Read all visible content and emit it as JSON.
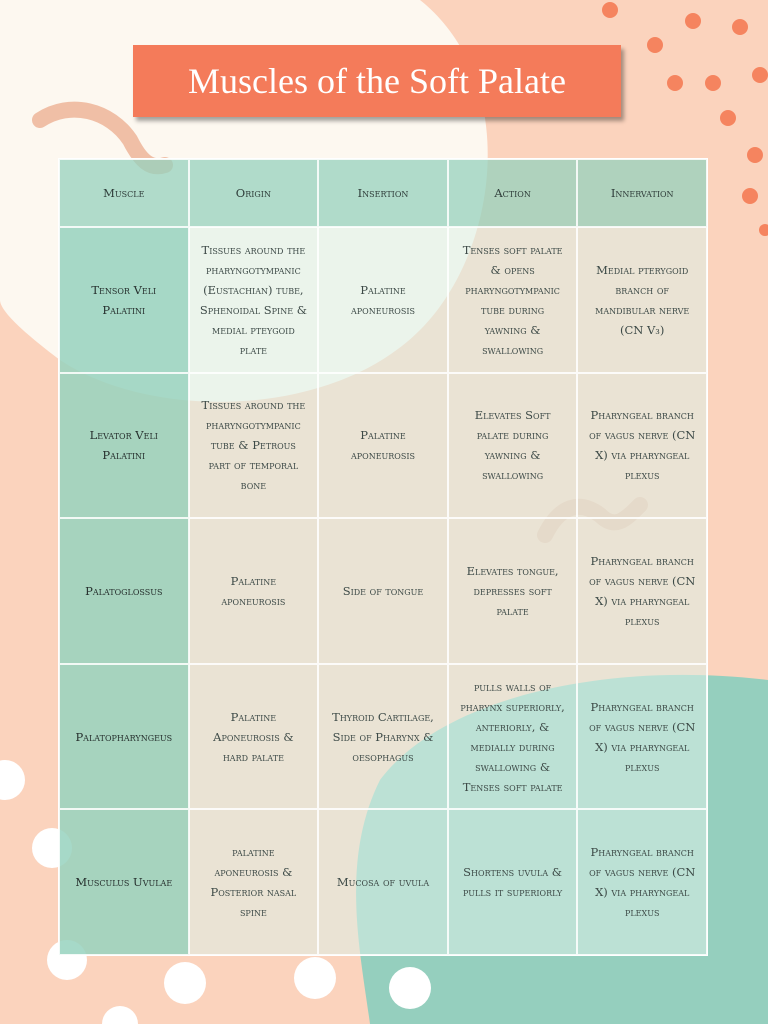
{
  "header": {
    "title": "Muscles of the Soft Palate"
  },
  "table": {
    "headers": [
      "Muscle",
      "Origin",
      "Insertion",
      "Action",
      "Innervation"
    ],
    "rows": [
      [
        "Tensor Veli Palatini",
        "Tissues around the pharyngotympanic (Eustachian) tube, Sphenoidal Spine & medial pteygoid plate",
        "Palatine aponeurosis",
        "Tenses soft palate & opens pharyngotympanic tube during yawning & swallowing",
        "Medial pterygoid branch of mandibular nerve (CN V₃)"
      ],
      [
        "Levator Veli Palatini",
        "Tissues around the pharyngotympanic tube & Petrous part of temporal bone",
        "Palatine aponeurosis",
        "Elevates Soft palate during yawning & swallowing",
        "Pharyngeal branch of vagus nerve (CN X) via pharyngeal plexus"
      ],
      [
        "Palatoglossus",
        "Palatine aponeurosis",
        "Side of tongue",
        "Elevates tongue, depresses soft palate",
        "Pharyngeal branch of vagus nerve (CN X) via pharyngeal plexus"
      ],
      [
        "Palatopharyngeus",
        "Palatine Aponeurosis & hard palate",
        "Thyroid Cartilage, Side of Pharynx & oesophagus",
        "pulls walls of pharynx superiorly, anteriorly, & medially during swallowing & Tenses soft palate",
        "Pharyngeal branch of vagus nerve (CN X) via pharyngeal plexus"
      ],
      [
        "Musculus Uvulae",
        "palatine aponeurosis & Posterior nasal spine",
        "Mucosa of uvula",
        "Shortens uvula & pulls it superiorly",
        "Pharyngeal branch of vagus nerve (CN X) via pharyngeal plexus"
      ]
    ]
  }
}
